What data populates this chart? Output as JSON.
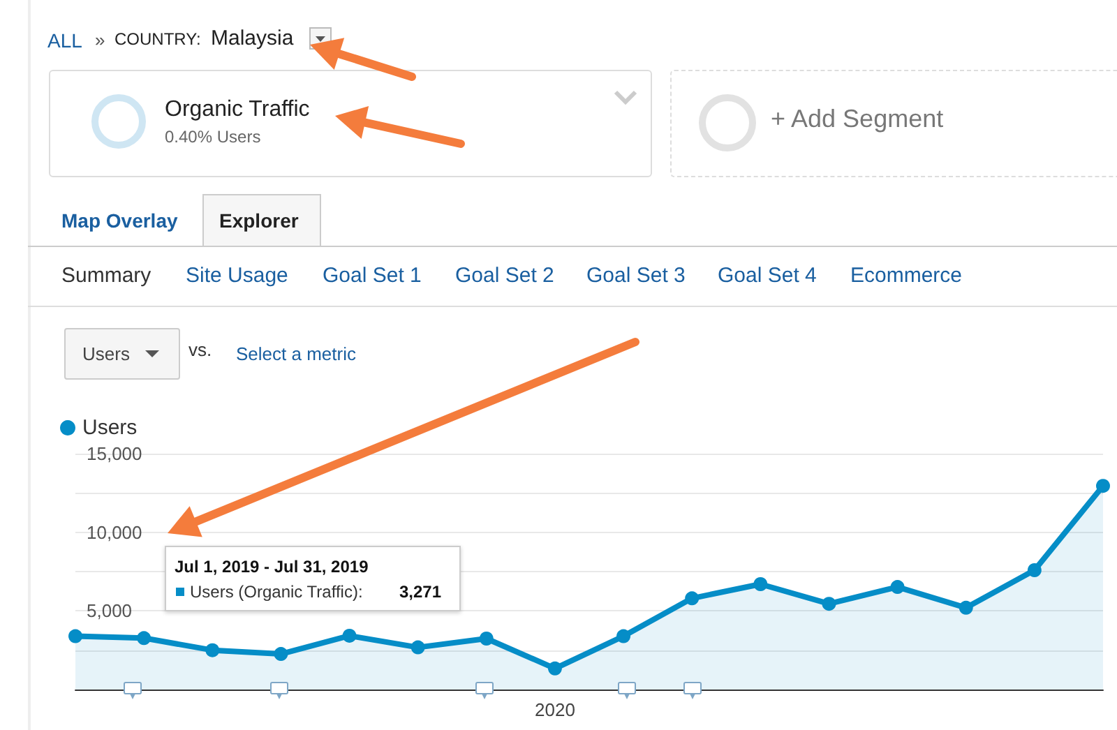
{
  "chart_data": {
    "type": "area",
    "categories": [
      null,
      null,
      null,
      null,
      null,
      null,
      null,
      "2020",
      null,
      null,
      null,
      null,
      null,
      null,
      null,
      null
    ],
    "series": [
      {
        "name": "Users",
        "color": "#058dc7",
        "values": [
          3390,
          3271,
          2500,
          2260,
          3420,
          2680,
          3240,
          1340,
          3390,
          5800,
          6700,
          5450,
          6520,
          5200,
          7590,
          12950
        ]
      }
    ],
    "ylim": [
      0,
      15000
    ],
    "yticks": [
      {
        "value": 2500,
        "label": null
      },
      {
        "value": 5000,
        "label": "5,000"
      },
      {
        "value": 7500,
        "label": null
      },
      {
        "value": 10000,
        "label": "10,000"
      },
      {
        "value": 12500,
        "label": null
      },
      {
        "value": 15000,
        "label": "15,000"
      }
    ],
    "grid": "y",
    "legend": "top left",
    "marker": "circle",
    "line_style": "solid",
    "annotations": [
      "ALL",
      "»",
      "COUNTRY:",
      "Malaysia",
      "Organic Traffic",
      "0.40% Users",
      "+ Add Segment",
      "Map Overlay",
      "Explorer",
      "Summary",
      "Site Usage",
      "Goal Set 1",
      "Goal Set 2",
      "Goal Set 3",
      "Goal Set 4",
      "Ecommerce",
      "Users",
      "vs.",
      "Select a metric",
      "Jul 1, 2019 - Jul 31, 2019",
      "Users (Organic Traffic):",
      "3,271"
    ]
  }
}
